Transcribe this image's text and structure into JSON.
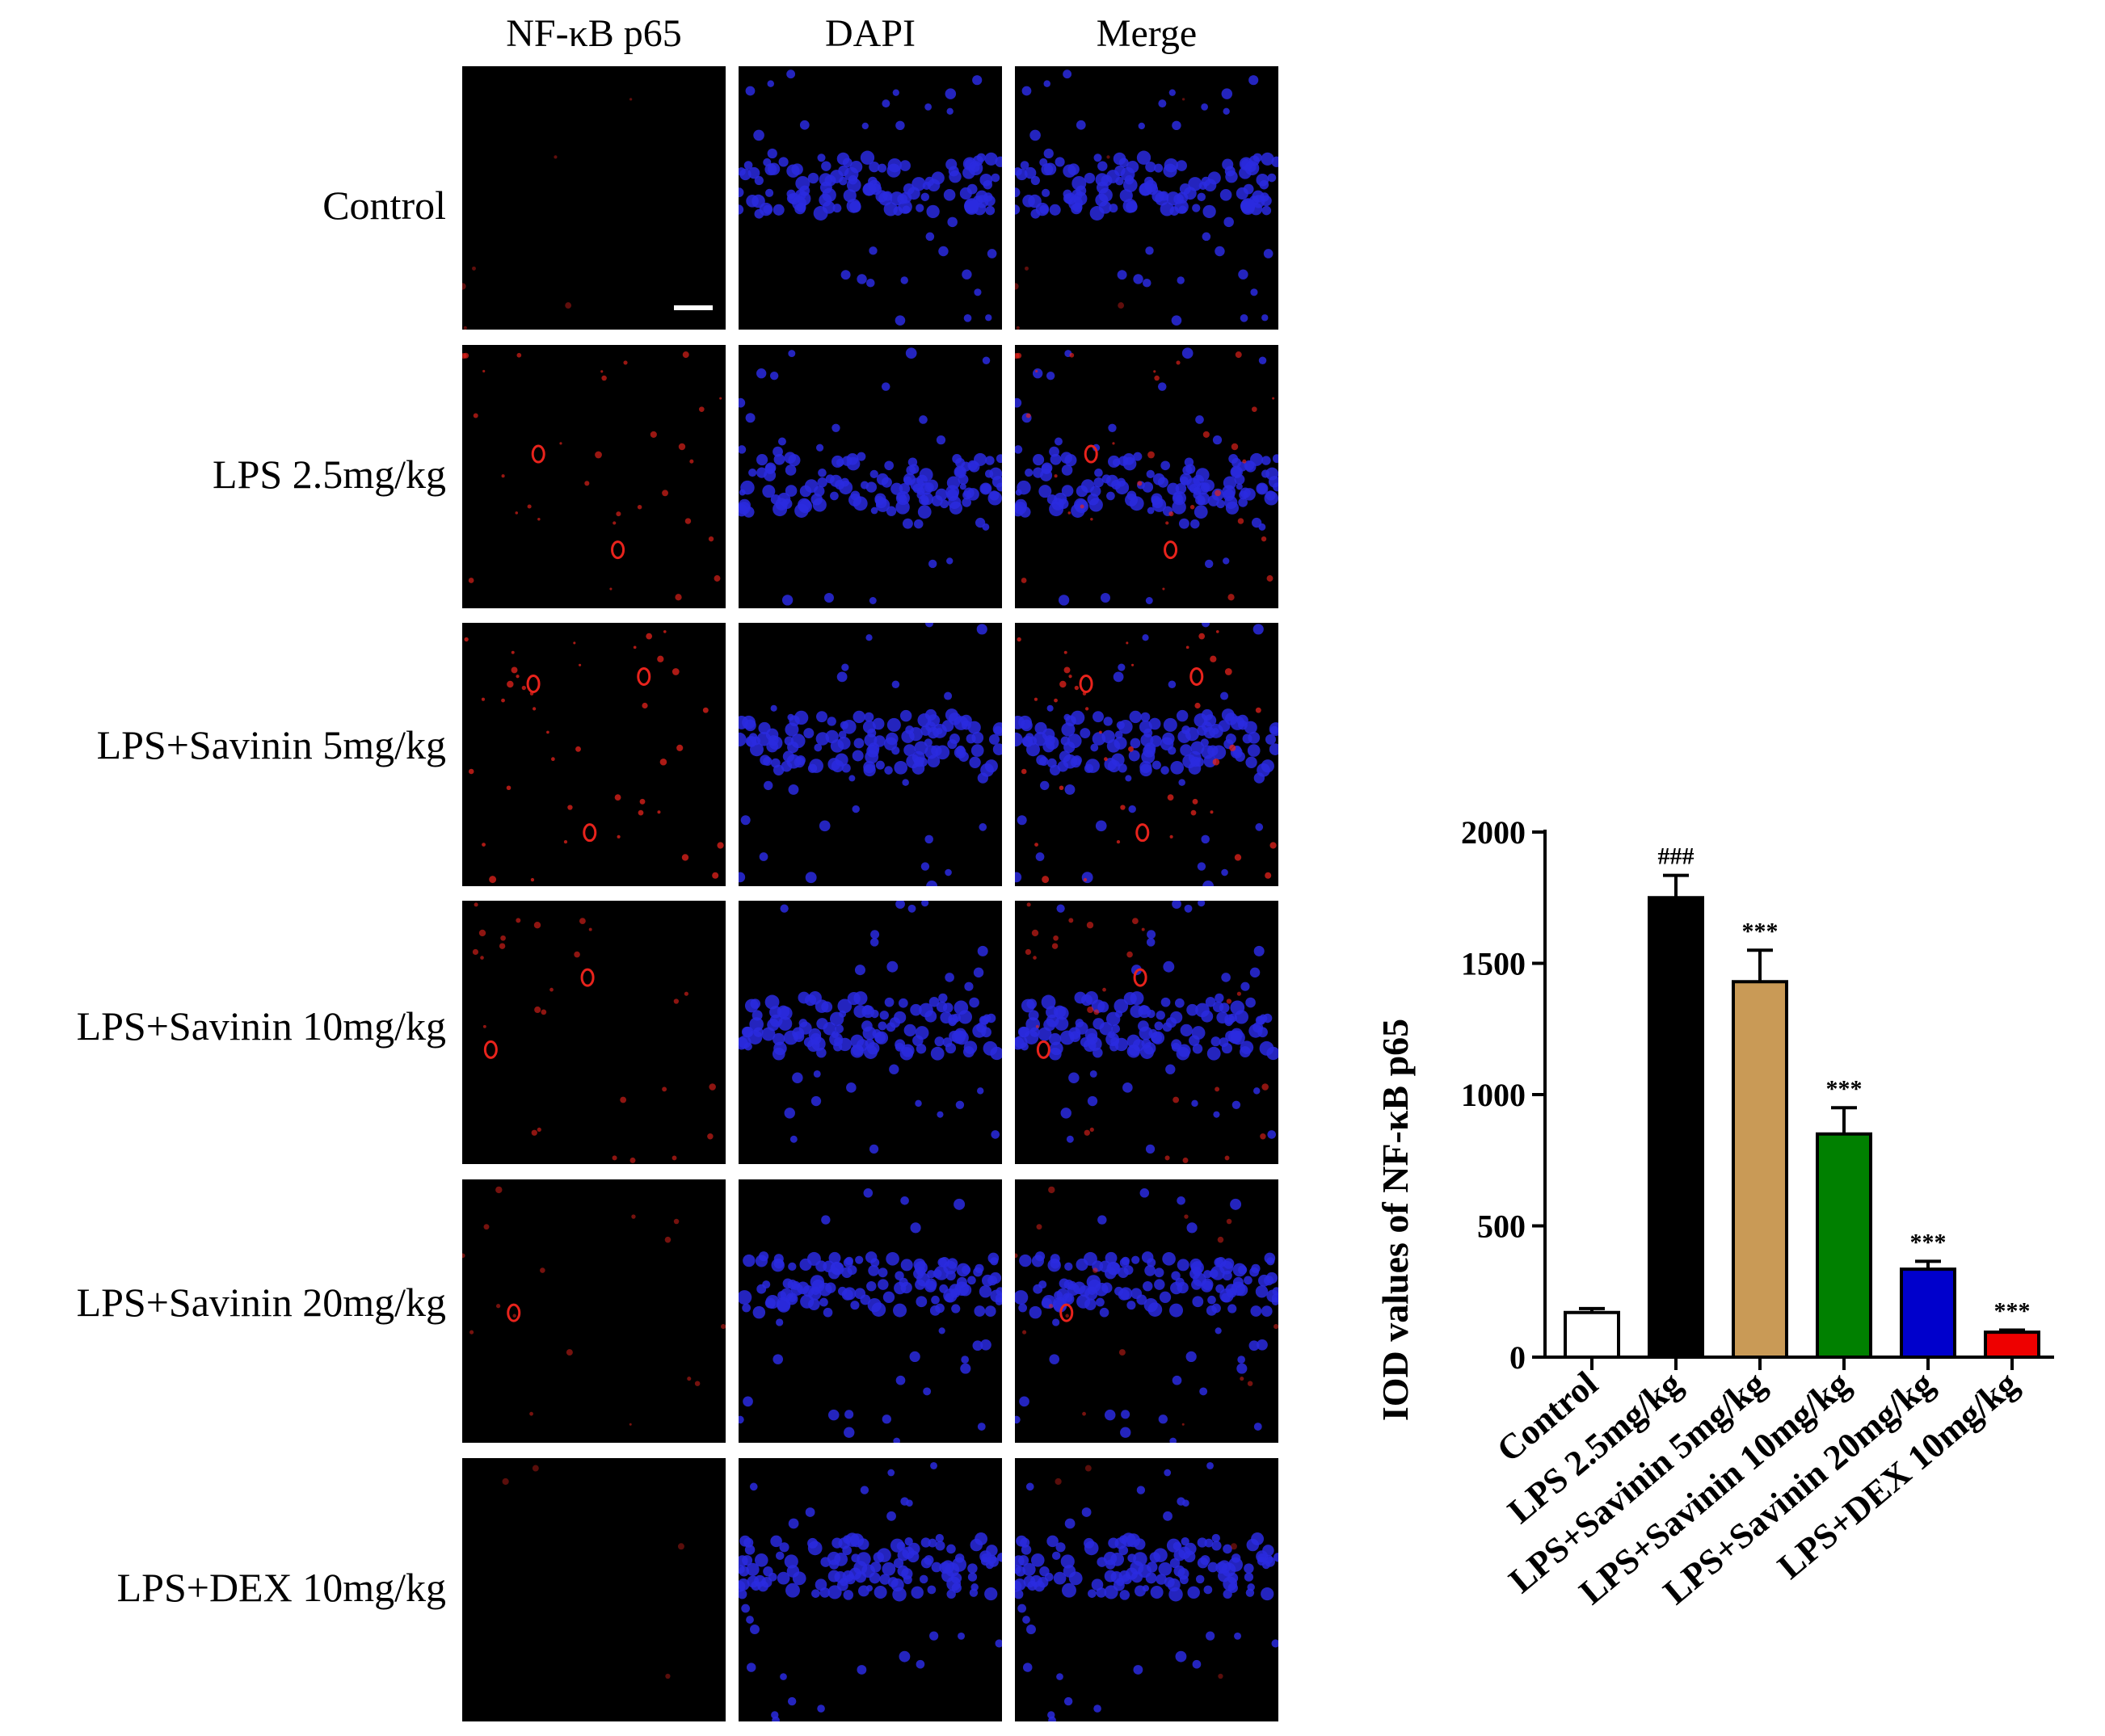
{
  "figure": {
    "column_headers": [
      "NF-κB p65",
      "DAPI",
      "Merge"
    ],
    "row_labels": [
      "Control",
      "LPS 2.5mg/kg",
      "LPS+Savinin 5mg/kg",
      "LPS+Savinin 10mg/kg",
      "LPS+Savinin 20mg/kg",
      "LPS+DEX 10mg/kg"
    ],
    "nfkb_intensity": [
      0.12,
      0.62,
      0.78,
      0.52,
      0.32,
      0.08
    ],
    "colors": {
      "nfkb": "#e8231c",
      "dapi": "#2a2adf",
      "tile_bg": "#000000"
    }
  },
  "chart_data": {
    "type": "bar",
    "categories": [
      "Control",
      "LPS 2.5mg/kg",
      "LPS+Savinin 5mg/kg",
      "LPS+Savinin 10mg/kg",
      "LPS+Savinin 20mg/kg",
      "LPS+DEX 10mg/kg"
    ],
    "values": [
      170,
      1750,
      1430,
      850,
      335,
      95
    ],
    "errors": [
      15,
      85,
      120,
      100,
      30,
      8
    ],
    "annotations": [
      "",
      "###",
      "***",
      "***",
      "***",
      "***"
    ],
    "colors": [
      "#ffffff",
      "#000000",
      "#c99a56",
      "#008000",
      "#0000cc",
      "#ee0000"
    ],
    "ylabel": "IOD values of NF-κB p65",
    "xlabel": "",
    "ylim": [
      0,
      2000
    ],
    "yticks": [
      0,
      500,
      1000,
      1500,
      2000
    ],
    "grid": false
  }
}
